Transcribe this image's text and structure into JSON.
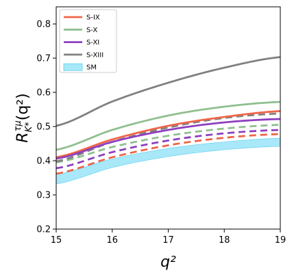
{
  "chart_data": {
    "type": "line",
    "xlabel": "q²",
    "ylabel": {
      "main": "R",
      "sub": "K*",
      "sup": "τμ",
      "arg": "(q²)"
    },
    "xlim": [
      15,
      19
    ],
    "ylim": [
      0.2,
      0.85
    ],
    "xticks": [
      "15",
      "16",
      "17",
      "18",
      "19"
    ],
    "yticks": [
      "0.2",
      "0.3",
      "0.4",
      "0.5",
      "0.6",
      "0.7",
      "0.8"
    ],
    "grid": false,
    "legend_position": "top-left",
    "x": [
      15,
      16,
      17,
      18,
      19
    ],
    "series": [
      {
        "name": "S-IX",
        "color": "#ef6548",
        "solid": [
          0.41,
          0.462,
          0.502,
          0.528,
          0.545
        ],
        "dashed": [
          0.362,
          0.41,
          0.445,
          0.467,
          0.478
        ]
      },
      {
        "name": "S-X",
        "color": "#8fbf8f",
        "solid": [
          0.432,
          0.49,
          0.532,
          0.558,
          0.572
        ],
        "dashed": [
          0.395,
          0.44,
          0.473,
          0.494,
          0.505
        ]
      },
      {
        "name": "S-XI",
        "color": "#8e3fbf",
        "solid": [
          0.406,
          0.455,
          0.49,
          0.512,
          0.522
        ],
        "dashed": [
          0.378,
          0.425,
          0.459,
          0.48,
          0.49
        ]
      },
      {
        "name": "S-XIII",
        "color": "#808080",
        "solid": [
          0.502,
          0.573,
          0.628,
          0.672,
          0.703
        ],
        "dashed": [
          0.398,
          0.455,
          0.497,
          0.525,
          0.538
        ]
      }
    ],
    "band": {
      "name": "SM",
      "color": "#a8e8f8",
      "edge_color": "#5ccdf0",
      "lower": [
        0.332,
        0.38,
        0.412,
        0.432,
        0.442
      ],
      "upper": [
        0.36,
        0.405,
        0.436,
        0.455,
        0.466
      ]
    }
  }
}
